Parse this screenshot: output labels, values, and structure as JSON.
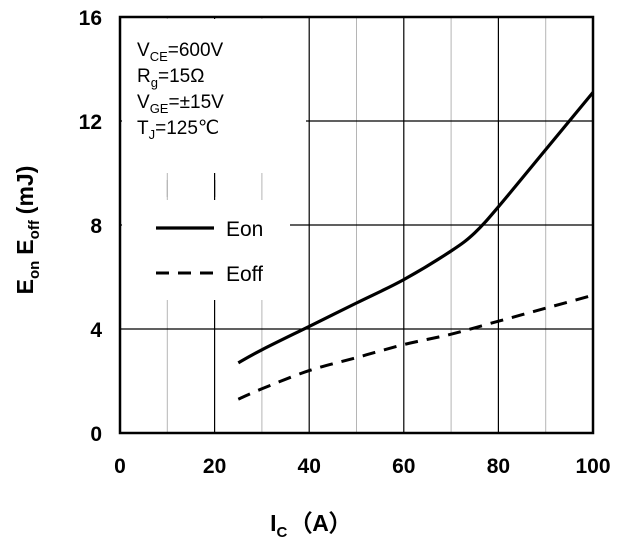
{
  "chart_data": {
    "type": "line",
    "xlabel_main": "I",
    "xlabel_sub": "C",
    "xlabel_rest": "（A）",
    "ylabel_e1": "E",
    "ylabel_s1": "on",
    "ylabel_e2": "E",
    "ylabel_s2": "off",
    "ylabel_unit": "(mJ)",
    "xlim": [
      0,
      100
    ],
    "ylim": [
      0,
      16
    ],
    "xticks": [
      "0",
      "20",
      "40",
      "60",
      "80",
      "100"
    ],
    "yticks": [
      "0",
      "4",
      "8",
      "12",
      "16"
    ],
    "conditions": [
      {
        "main": "V",
        "sub": "CE",
        "rest": "=600V"
      },
      {
        "main": "R",
        "sub": "g",
        "rest": "=15Ω"
      },
      {
        "main": "V",
        "sub": "GE",
        "rest": "=±15V"
      },
      {
        "main": "T",
        "sub": "J",
        "rest": "=125℃"
      }
    ],
    "series": [
      {
        "name": "Eon",
        "style": "solid",
        "x": [
          25,
          30,
          40,
          50,
          60,
          70,
          75,
          80,
          90,
          100
        ],
        "y": [
          2.7,
          3.2,
          4.1,
          5.0,
          5.9,
          7.0,
          7.7,
          8.7,
          10.9,
          13.1
        ]
      },
      {
        "name": "Eoff",
        "style": "dashed",
        "x": [
          25,
          30,
          40,
          50,
          60,
          70,
          80,
          90,
          100
        ],
        "y": [
          1.3,
          1.7,
          2.4,
          2.9,
          3.4,
          3.8,
          4.3,
          4.8,
          5.3
        ]
      }
    ],
    "grid": true,
    "legend": "left-middle",
    "line_color": "#000000"
  }
}
